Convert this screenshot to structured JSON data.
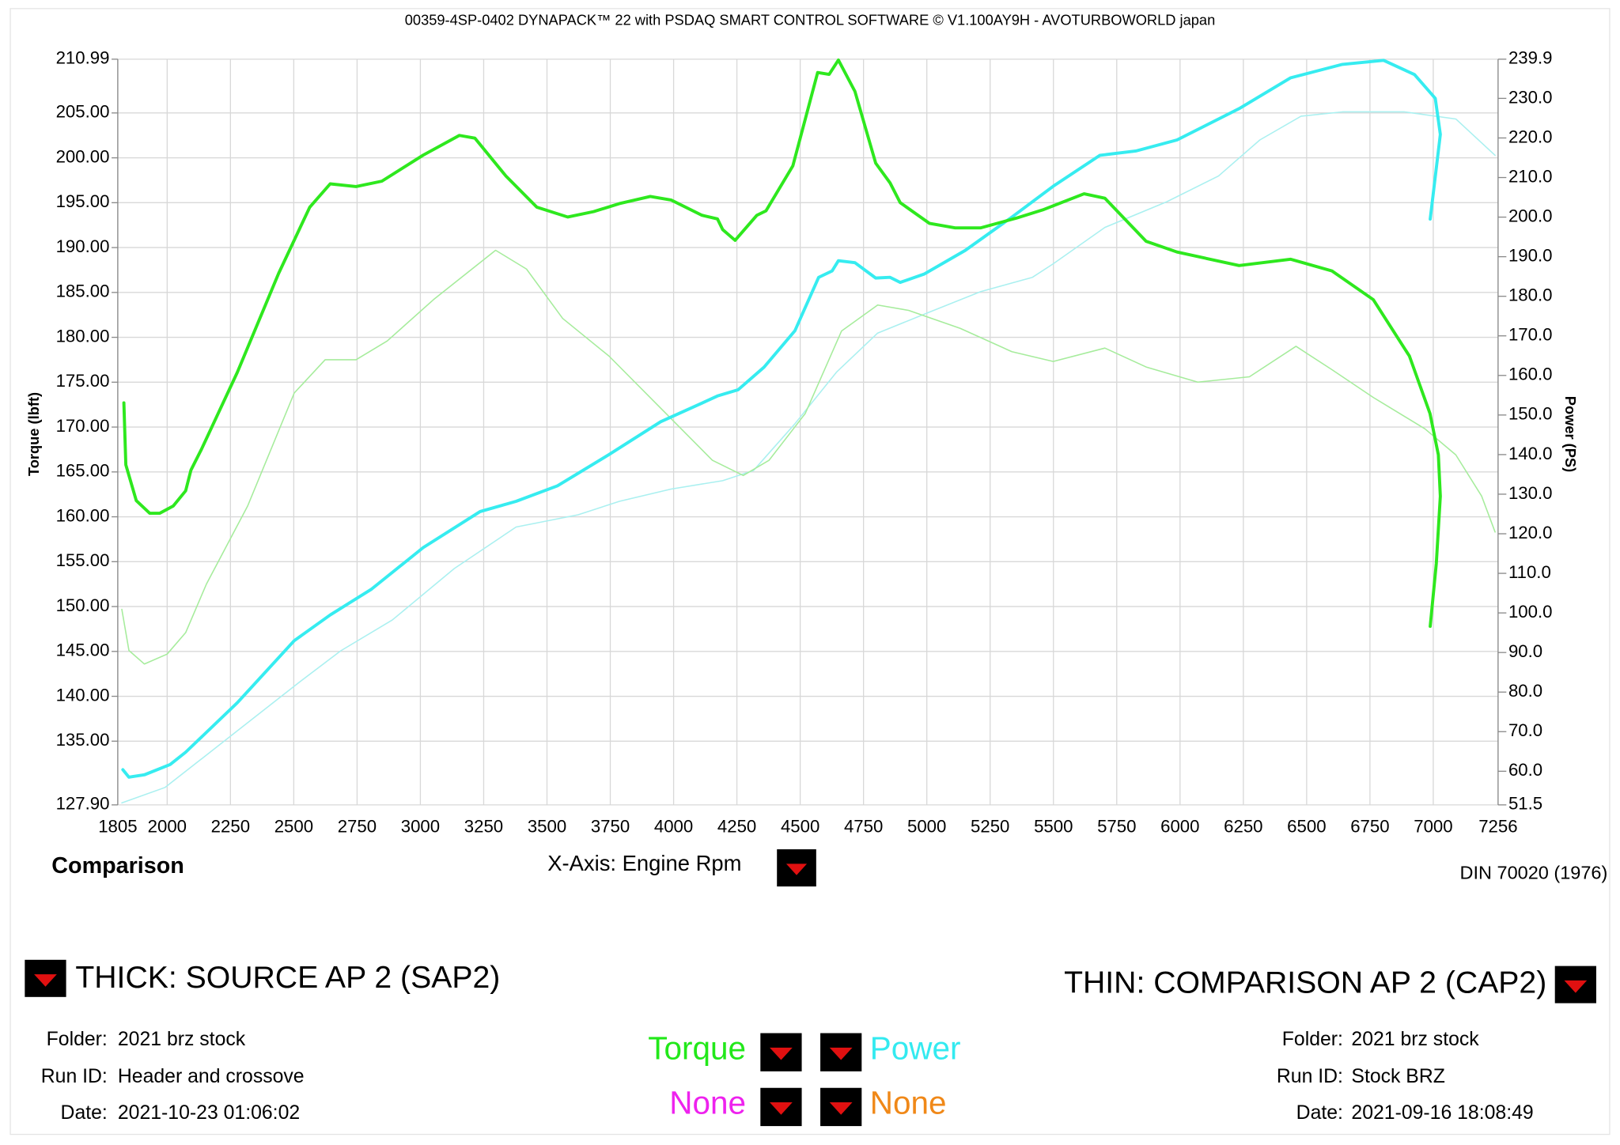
{
  "chart_data": {
    "type": "line",
    "title": "00359-4SP-0402 DYNAPACK™ 22 with PSDAQ SMART CONTROL SOFTWARE © V1.100AY9H - AVOTURBOWORLD japan",
    "y_label": "Torque (lbft)",
    "y2_label": "Power (PS)",
    "x_label": "X-Axis: Engine Rpm",
    "xlim": [
      1805,
      7256
    ],
    "xticks": [
      1805,
      2000,
      2250,
      2500,
      2750,
      3000,
      3250,
      3500,
      3750,
      4000,
      4250,
      4500,
      4750,
      5000,
      5250,
      5500,
      5750,
      6000,
      6250,
      6500,
      6750,
      7000,
      7256
    ],
    "ylim": [
      127.9,
      210.99
    ],
    "yticks": [
      {
        "value": 127.9,
        "label": "127.90"
      },
      {
        "value": 135,
        "label": "135.00"
      },
      {
        "value": 140,
        "label": "140.00"
      },
      {
        "value": 145,
        "label": "145.00"
      },
      {
        "value": 150,
        "label": "150.00"
      },
      {
        "value": 155,
        "label": "155.00"
      },
      {
        "value": 160,
        "label": "160.00"
      },
      {
        "value": 165,
        "label": "165.00"
      },
      {
        "value": 170,
        "label": "170.00"
      },
      {
        "value": 175,
        "label": "175.00"
      },
      {
        "value": 180,
        "label": "180.00"
      },
      {
        "value": 185,
        "label": "185.00"
      },
      {
        "value": 190,
        "label": "190.00"
      },
      {
        "value": 195,
        "label": "195.00"
      },
      {
        "value": 200,
        "label": "200.00"
      },
      {
        "value": 205,
        "label": "205.00"
      },
      210.99
    ],
    "y2lim": [
      51.5,
      239.9
    ],
    "y2ticks": [
      51.5,
      {
        "value": 60,
        "label": "60.0"
      },
      {
        "value": 70,
        "label": "70.0"
      },
      {
        "value": 80,
        "label": "80.0"
      },
      {
        "value": 90,
        "label": "90.0"
      },
      {
        "value": 100,
        "label": "100.0"
      },
      {
        "value": 110,
        "label": "110.0"
      },
      {
        "value": 120,
        "label": "120.0"
      },
      {
        "value": 130,
        "label": "130.0"
      },
      {
        "value": 140,
        "label": "140.0"
      },
      {
        "value": 150,
        "label": "150.0"
      },
      {
        "value": 160,
        "label": "160.0"
      },
      {
        "value": 170,
        "label": "170.0"
      },
      {
        "value": 180,
        "label": "180.0"
      },
      {
        "value": 190,
        "label": "190.0"
      },
      {
        "value": 200,
        "label": "200.0"
      },
      {
        "value": 210,
        "label": "210.0"
      },
      {
        "value": 220,
        "label": "220.0"
      },
      {
        "value": 230,
        "label": "230.0"
      },
      239.9
    ],
    "grid": true,
    "series": [
      {
        "color": "#2ee81e",
        "line_width": 3,
        "axis": "y",
        "x": [
          1829,
          1837,
          1878,
          1931,
          1971,
          2024,
          2073,
          2094,
          2135,
          2277,
          2440,
          2563,
          2644,
          2746,
          2848,
          3011,
          3154,
          3215,
          3337,
          3460,
          3582,
          3684,
          3786,
          3908,
          3990,
          4112,
          4173,
          4194,
          4243,
          4329,
          4365,
          4471,
          4569,
          4614,
          4651,
          4716,
          4798,
          4855,
          4895,
          5010,
          5112,
          5213,
          5356,
          5458,
          5621,
          5703,
          5866,
          5988,
          6233,
          6437,
          6600,
          6763,
          6906,
          6987,
          7020,
          7028,
          7012,
          6988
        ],
        "values": [
          172.7,
          165.8,
          161.8,
          160.4,
          160.4,
          161.2,
          162.9,
          165.2,
          167.5,
          176.1,
          187.1,
          194.5,
          197.1,
          196.8,
          197.4,
          200.3,
          202.5,
          202.2,
          198,
          194.5,
          193.4,
          194,
          194.9,
          195.7,
          195.3,
          193.6,
          193.2,
          192,
          190.8,
          193.6,
          194.1,
          199.1,
          209.5,
          209.3,
          210.9,
          207.4,
          199.4,
          197.2,
          195,
          192.7,
          192.2,
          192.2,
          193.3,
          194.2,
          196,
          195.5,
          190.7,
          189.5,
          188,
          188.7,
          187.4,
          184.2,
          177.9,
          171.5,
          166.9,
          162.3,
          154.8,
          147.8
        ]
      },
      {
        "color": "#36ecf0",
        "line_width": 3,
        "axis": "y2",
        "x": [
          1825,
          1849,
          1910,
          2012,
          2073,
          2277,
          2502,
          2644,
          2807,
          3011,
          3236,
          3378,
          3541,
          3745,
          3949,
          4112,
          4173,
          4255,
          4357,
          4479,
          4573,
          4626,
          4651,
          4716,
          4798,
          4855,
          4895,
          4989,
          5152,
          5336,
          5499,
          5683,
          5825,
          5988,
          6233,
          6437,
          6641,
          6804,
          6926,
          7008,
          7028,
          6988
        ],
        "values": [
          60.4,
          58.5,
          59.1,
          61.7,
          64.8,
          77.3,
          93,
          99.5,
          106,
          116.5,
          125.6,
          128.2,
          132.1,
          140,
          148.3,
          153,
          154.8,
          156.4,
          162.1,
          171.3,
          184.8,
          186.4,
          189,
          188.5,
          184.6,
          184.8,
          183.5,
          185.6,
          191.6,
          200,
          207.8,
          215.6,
          216.7,
          219.5,
          227.4,
          235.2,
          238.6,
          239.6,
          236,
          230,
          220.9,
          199.5
        ]
      },
      {
        "color": "#a6ec9c",
        "line_width": 1.2,
        "axis": "y",
        "x": [
          1821,
          1849,
          1910,
          2000,
          2073,
          2155,
          2318,
          2502,
          2624,
          2746,
          2869,
          3052,
          3297,
          3419,
          3562,
          3745,
          3949,
          4153,
          4275,
          4377,
          4520,
          4663,
          4806,
          4928,
          5132,
          5336,
          5499,
          5703,
          5866,
          6070,
          6274,
          6458,
          6600,
          6763,
          6967,
          7089,
          7191,
          7244
        ],
        "values": [
          149.7,
          145.1,
          143.6,
          144.7,
          147.1,
          152.5,
          161.2,
          173.8,
          177.5,
          177.5,
          179.6,
          184.2,
          189.7,
          187.6,
          182.1,
          177.9,
          172.1,
          166.3,
          164.6,
          166.3,
          171.5,
          180.7,
          183.6,
          183,
          181,
          178.4,
          177.3,
          178.8,
          176.7,
          175,
          175.6,
          179,
          176.4,
          173.3,
          169.8,
          166.9,
          162.3,
          158.3
        ]
      },
      {
        "color": "#aaf0f0",
        "line_width": 1.2,
        "axis": "y2",
        "x": [
          1821,
          1992,
          2237,
          2522,
          2685,
          2889,
          3134,
          3378,
          3623,
          3786,
          3990,
          4194,
          4316,
          4479,
          4643,
          4806,
          5010,
          5213,
          5417,
          5499,
          5703,
          5948,
          6152,
          6315,
          6478,
          6641,
          6886,
          7089,
          7244
        ],
        "values": [
          52,
          55.9,
          68.2,
          82.5,
          90.4,
          98.2,
          111.2,
          121.7,
          124.8,
          128.2,
          131.3,
          133.4,
          136,
          147.8,
          160.8,
          170.7,
          176,
          181.2,
          184.8,
          188.2,
          197.4,
          203.9,
          210.4,
          219.5,
          225.5,
          226.6,
          226.6,
          224.8,
          215.6
        ]
      }
    ]
  },
  "footer": {
    "mode": "Comparison",
    "standard": "DIN 70020 (1976)"
  },
  "source": {
    "title": "THICK: SOURCE AP 2 (SAP2)",
    "fields": [
      {
        "label": "Folder:",
        "value": "2021 brz stock"
      },
      {
        "label": "Run ID:",
        "value": "Header and crossove"
      },
      {
        "label": "Date:",
        "value": "2021-10-23 01:06:02"
      }
    ]
  },
  "comparison": {
    "title": "THIN: COMPARISON AP 2 (CAP2)",
    "fields": [
      {
        "label": "Folder:",
        "value": "2021 brz stock"
      },
      {
        "label": "Run ID:",
        "value": "Stock BRZ"
      },
      {
        "label": "Date:",
        "value": "2021-09-16 18:08:49"
      }
    ]
  },
  "channels": [
    {
      "name": "Torque",
      "color": "#22e81a"
    },
    {
      "name": "Power",
      "color": "#33eaf0"
    },
    {
      "name": "None",
      "color": "#ee22ee"
    },
    {
      "name": "None",
      "color": "#f08818"
    }
  ]
}
